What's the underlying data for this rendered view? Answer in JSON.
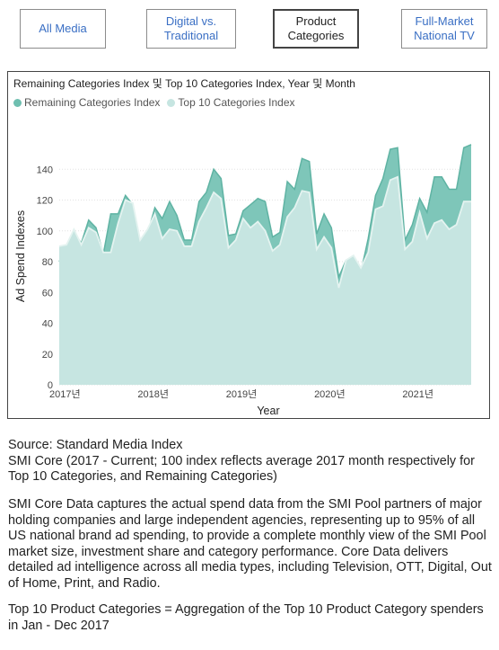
{
  "tabs": [
    {
      "label_line1": "All Media",
      "label_line2": "",
      "active": false
    },
    {
      "label_line1": "Digital vs.",
      "label_line2": "Traditional",
      "active": false
    },
    {
      "label_line1": "Product",
      "label_line2": "Categories",
      "active": true
    },
    {
      "label_line1": "Full-Market",
      "label_line2": "National TV",
      "active": false
    }
  ],
  "chart_data": {
    "type": "area",
    "title": "Remaining Categories Index 및 Top 10 Categories Index, Year 및 Month",
    "xlabel": "Year",
    "ylabel": "Ad Spend Indexes",
    "ylim": [
      0,
      160
    ],
    "yticks": [
      0,
      20,
      40,
      60,
      80,
      100,
      120,
      140
    ],
    "grid": true,
    "legend_position": "top-left",
    "x_tick_labels": [
      {
        "label": "2017년",
        "month_index": 0
      },
      {
        "label": "2018년",
        "month_index": 12
      },
      {
        "label": "2019년",
        "month_index": 24
      },
      {
        "label": "2020년",
        "month_index": 36
      },
      {
        "label": "2021년",
        "month_index": 48
      }
    ],
    "x_start": "2017-01",
    "series": [
      {
        "name": "Remaining Categories Index",
        "color": "#6fbfb0",
        "values": [
          80,
          90,
          99,
          92,
          107,
          102,
          85,
          111,
          111,
          123,
          117,
          91,
          98,
          115,
          108,
          119,
          110,
          94,
          94,
          119,
          125,
          140,
          134,
          97,
          98,
          113,
          117,
          121,
          119,
          96,
          99,
          132,
          127,
          147,
          145,
          98,
          111,
          102,
          70,
          81,
          82,
          73,
          95,
          123,
          134,
          153,
          154,
          94,
          104,
          121,
          112,
          135,
          135,
          127,
          127,
          154,
          156
        ]
      },
      {
        "name": "Top 10 Categories Index",
        "color": "#c6e5e1",
        "values": [
          90,
          91,
          101,
          91,
          102,
          99,
          86,
          86,
          105,
          120,
          118,
          94,
          101,
          111,
          95,
          101,
          100,
          90,
          90,
          106,
          115,
          125,
          121,
          89,
          94,
          108,
          102,
          106,
          100,
          87,
          91,
          109,
          115,
          126,
          125,
          88,
          96,
          89,
          63,
          81,
          84,
          76,
          86,
          114,
          116,
          133,
          135,
          88,
          93,
          112,
          95,
          105,
          107,
          101,
          104,
          119,
          119
        ]
      }
    ]
  },
  "source_text": "Source: Standard Media Index",
  "smi_core_text": "SMI Core (2017 - Current; 100 index reflects average 2017 month respectively for Top 10 Categories, and Remaining Categories)",
  "core_data_text": "SMI Core Data captures the actual spend data from the SMI Pool partners of major holding companies and large independent agencies, representing up to 95% of all US national brand ad spending, to provide a complete monthly view of the SMI Pool market size, investment share and category performance. Core Data delivers detailed ad intelligence across all media types, including Television, OTT, Digital, Out of Home, Print, and Radio.",
  "top10_text": "Top 10 Product Categories = Aggregation of the Top 10 Product Category spenders in Jan - Dec 2017"
}
